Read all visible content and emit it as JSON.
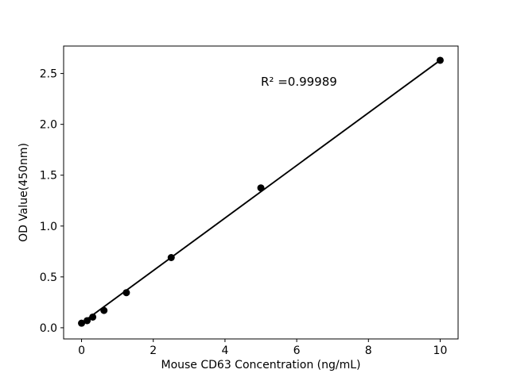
{
  "figure": {
    "background": "#ffffff",
    "foreground": "#000000"
  },
  "chart_data": {
    "type": "scatter",
    "title": "",
    "xlabel": "Mouse CD63 Concentration (ng/mL)",
    "ylabel": "OD Value(450nm)",
    "annotation": {
      "text": "R² =0.99989",
      "x": 5,
      "y": 2.38
    },
    "r_squared": 0.99989,
    "x": [
      0,
      0.156,
      0.3125,
      0.625,
      1.25,
      2.5,
      5,
      10
    ],
    "y": [
      0.045,
      0.07,
      0.105,
      0.17,
      0.345,
      0.69,
      1.375,
      2.63
    ],
    "fit_line": {
      "x1": 0,
      "y1": 0.045,
      "x2": 10,
      "y2": 2.63
    },
    "xlim": [
      -0.5,
      10.5
    ],
    "ylim": [
      -0.11,
      2.77
    ],
    "x_ticks": [
      0,
      2,
      4,
      6,
      8,
      10
    ],
    "x_tick_labels": [
      "0",
      "2",
      "4",
      "6",
      "8",
      "10"
    ],
    "y_ticks": [
      0,
      0.5,
      1,
      1.5,
      2,
      2.5
    ],
    "y_tick_labels": [
      "0.0",
      "0.5",
      "1.0",
      "1.5",
      "2.0",
      "2.5"
    ],
    "grid": false,
    "legend": null,
    "marker_color": "#000000",
    "line_color": "#000000",
    "axis_color": "#000000"
  }
}
